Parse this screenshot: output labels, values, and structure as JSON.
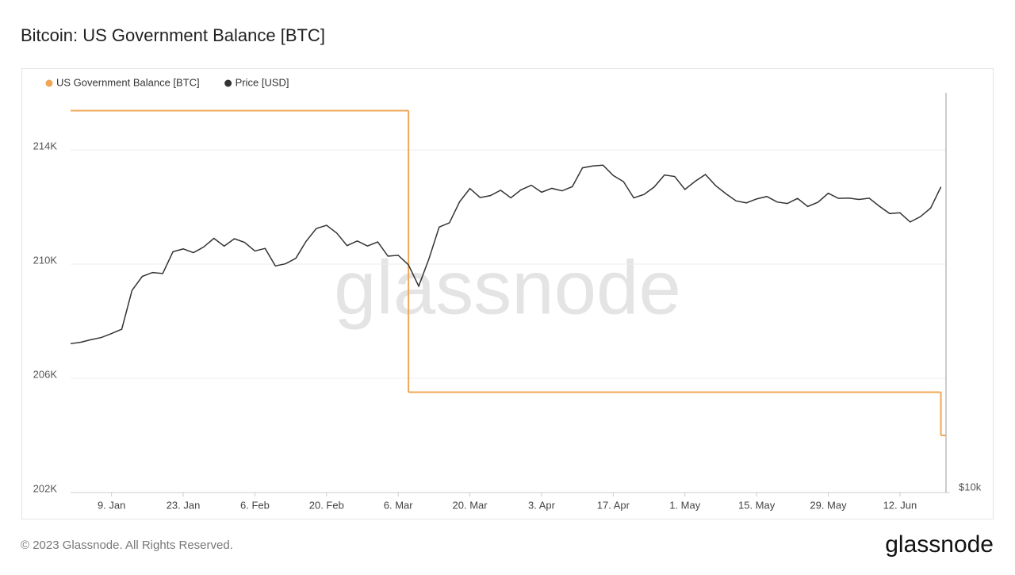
{
  "chart_data": {
    "type": "line",
    "title": "Bitcoin: US Government Balance [BTC]",
    "watermark": "glassnode",
    "footer": "© 2023 Glassnode. All Rights Reserved.",
    "logo": "glassnode",
    "xlim": [
      "1. Jan",
      "21. Jun"
    ],
    "xticks": [
      "9. Jan",
      "23. Jan",
      "6. Feb",
      "20. Feb",
      "6. Mar",
      "20. Mar",
      "3. Apr",
      "17. Apr",
      "1. May",
      "15. May",
      "29. May",
      "12. Jun"
    ],
    "ylim": [
      202000,
      216000
    ],
    "yticks": [
      {
        "value": 202000,
        "label": "202K"
      },
      {
        "value": 206000,
        "label": "206K"
      },
      {
        "value": 210000,
        "label": "210K"
      },
      {
        "value": 214000,
        "label": "214K"
      }
    ],
    "y2lim": [
      10000,
      39000
    ],
    "y2scale": "log",
    "y2ticks": [
      {
        "value": 10000,
        "label": "$10k"
      }
    ],
    "grid": true,
    "legend": "top-left",
    "series": [
      {
        "name": "US Government Balance [BTC]",
        "color": "#f0a656",
        "step": true,
        "x": [
          "1. Jan",
          "8. Mar",
          "20. Jun"
        ],
        "values": [
          215376,
          205515,
          204000
        ]
      },
      {
        "name": "Price [USD]",
        "color": "#333333",
        "axis": "y2",
        "x": [
          "1. Jan",
          "3. Jan",
          "5. Jan",
          "7. Jan",
          "9. Jan",
          "11. Jan",
          "13. Jan",
          "15. Jan",
          "17. Jan",
          "19. Jan",
          "21. Jan",
          "23. Jan",
          "25. Jan",
          "27. Jan",
          "29. Jan",
          "31. Jan",
          "2. Feb",
          "4. Feb",
          "6. Feb",
          "8. Feb",
          "10. Feb",
          "12. Feb",
          "14. Feb",
          "16. Feb",
          "18. Feb",
          "20. Feb",
          "22. Feb",
          "24. Feb",
          "26. Feb",
          "28. Feb",
          "2. Mar",
          "4. Mar",
          "6. Mar",
          "8. Mar",
          "10. Mar",
          "12. Mar",
          "14. Mar",
          "16. Mar",
          "18. Mar",
          "20. Mar",
          "22. Mar",
          "24. Mar",
          "26. Mar",
          "28. Mar",
          "30. Mar",
          "1. Apr",
          "3. Apr",
          "5. Apr",
          "7. Apr",
          "9. Apr",
          "11. Apr",
          "13. Apr",
          "15. Apr",
          "17. Apr",
          "19. Apr",
          "21. Apr",
          "23. Apr",
          "25. Apr",
          "27. Apr",
          "29. Apr",
          "1. May",
          "3. May",
          "5. May",
          "7. May",
          "9. May",
          "11. May",
          "13. May",
          "15. May",
          "17. May",
          "19. May",
          "21. May",
          "23. May",
          "25. May",
          "27. May",
          "29. May",
          "31. May",
          "2. Jun",
          "4. Jun",
          "6. Jun",
          "8. Jun",
          "10. Jun",
          "12. Jun",
          "14. Jun",
          "16. Jun",
          "18. Jun",
          "20. Jun"
        ],
        "values": [
          16600,
          16680,
          16830,
          16950,
          17180,
          17440,
          19900,
          20870,
          21150,
          21080,
          22700,
          22920,
          22630,
          23070,
          23760,
          23140,
          23730,
          23430,
          22760,
          22960,
          21630,
          21790,
          22200,
          23520,
          24570,
          24840,
          24190,
          23180,
          23550,
          23150,
          23470,
          22360,
          22430,
          21710,
          20190,
          22160,
          24690,
          25050,
          26920,
          28150,
          27300,
          27480,
          27990,
          27270,
          28030,
          28470,
          27800,
          28170,
          27930,
          28330,
          30210,
          30400,
          30480,
          29430,
          28820,
          27270,
          27590,
          28300,
          29480,
          29330,
          28070,
          28850,
          29530,
          28430,
          27660,
          26990,
          26810,
          27170,
          27400,
          26890,
          26750,
          27220,
          26480,
          26870,
          27700,
          27220,
          27250,
          27120,
          27240,
          26500,
          25850,
          25920,
          25120,
          25580,
          26340,
          28300
        ]
      }
    ]
  }
}
